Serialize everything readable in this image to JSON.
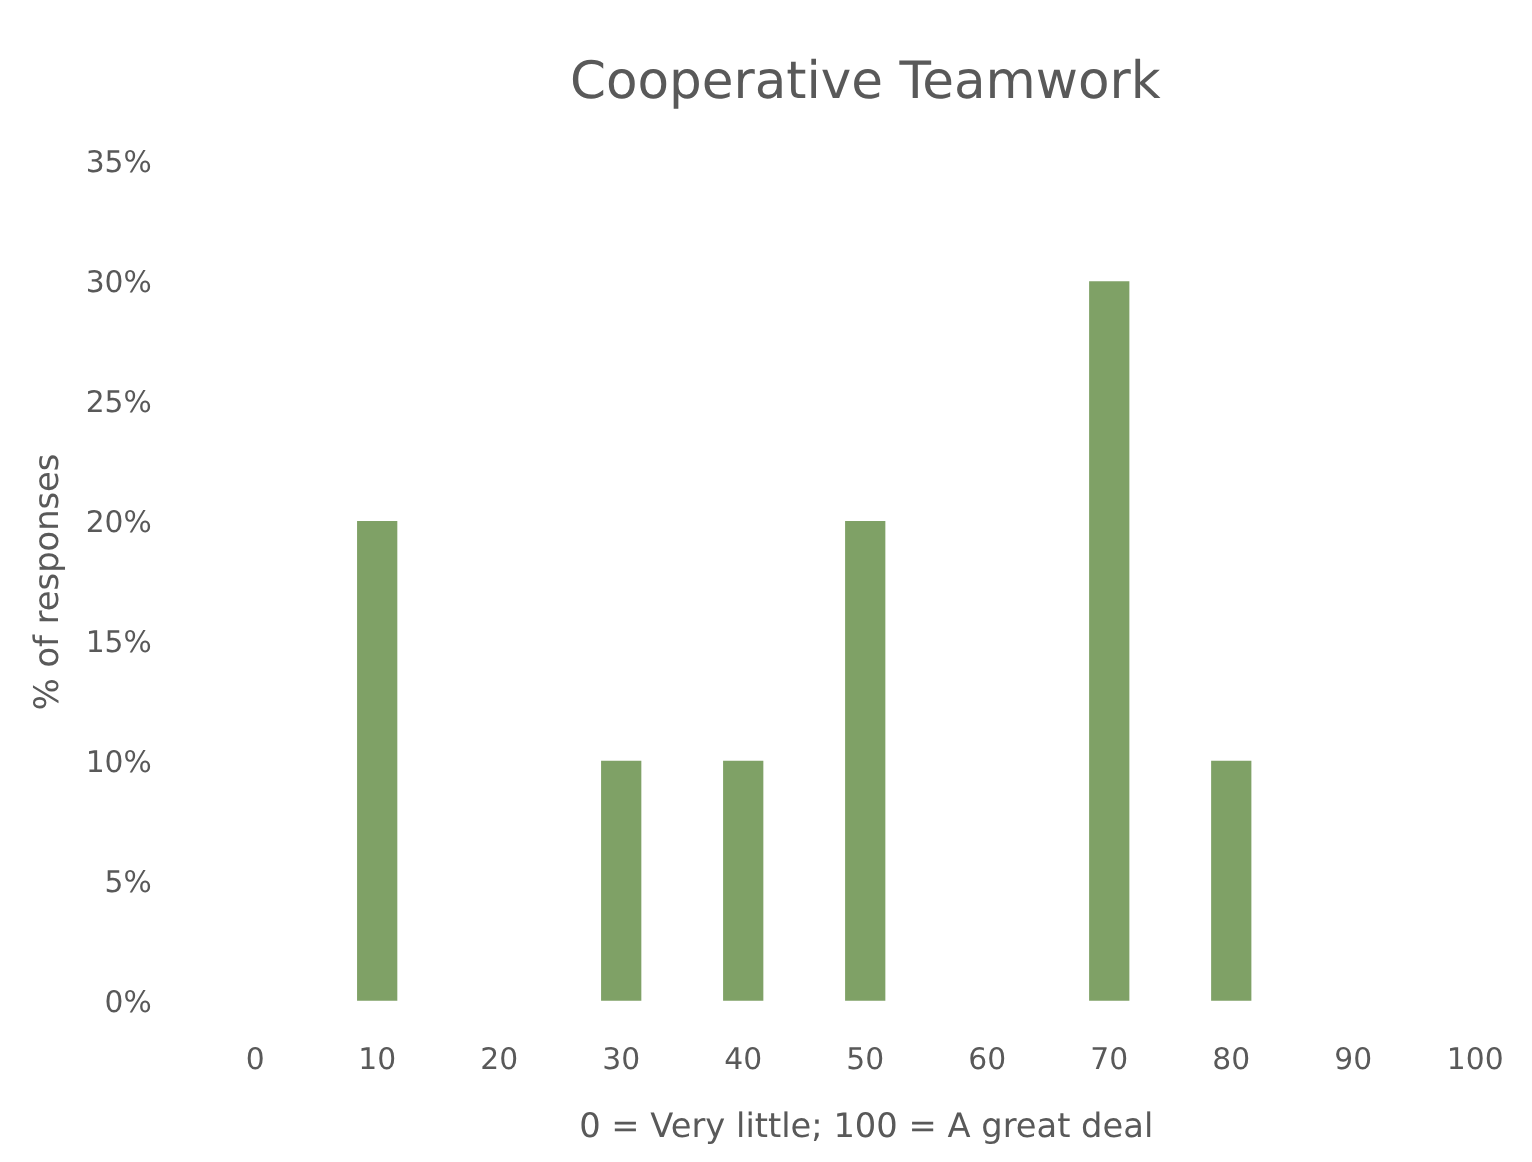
{
  "chart_data": {
    "type": "bar",
    "title": "Cooperative Teamwork",
    "xlabel": "0 = Very little; 100 = A great deal",
    "ylabel": "% of responses",
    "categories": [
      "0",
      "10",
      "20",
      "30",
      "40",
      "50",
      "60",
      "70",
      "80",
      "90",
      "100"
    ],
    "values": [
      0,
      20,
      0,
      10,
      10,
      20,
      0,
      30,
      10,
      0,
      0
    ],
    "color": "#7fa166",
    "ylim": [
      0,
      35
    ],
    "yticks": [
      {
        "value": 0,
        "label": "0%"
      },
      {
        "value": 5,
        "label": "5%"
      },
      {
        "value": 10,
        "label": "10%"
      },
      {
        "value": 15,
        "label": "15%"
      },
      {
        "value": 20,
        "label": "20%"
      },
      {
        "value": 25,
        "label": "25%"
      },
      {
        "value": 30,
        "label": "30%"
      },
      {
        "value": 35,
        "label": "35%"
      }
    ]
  }
}
